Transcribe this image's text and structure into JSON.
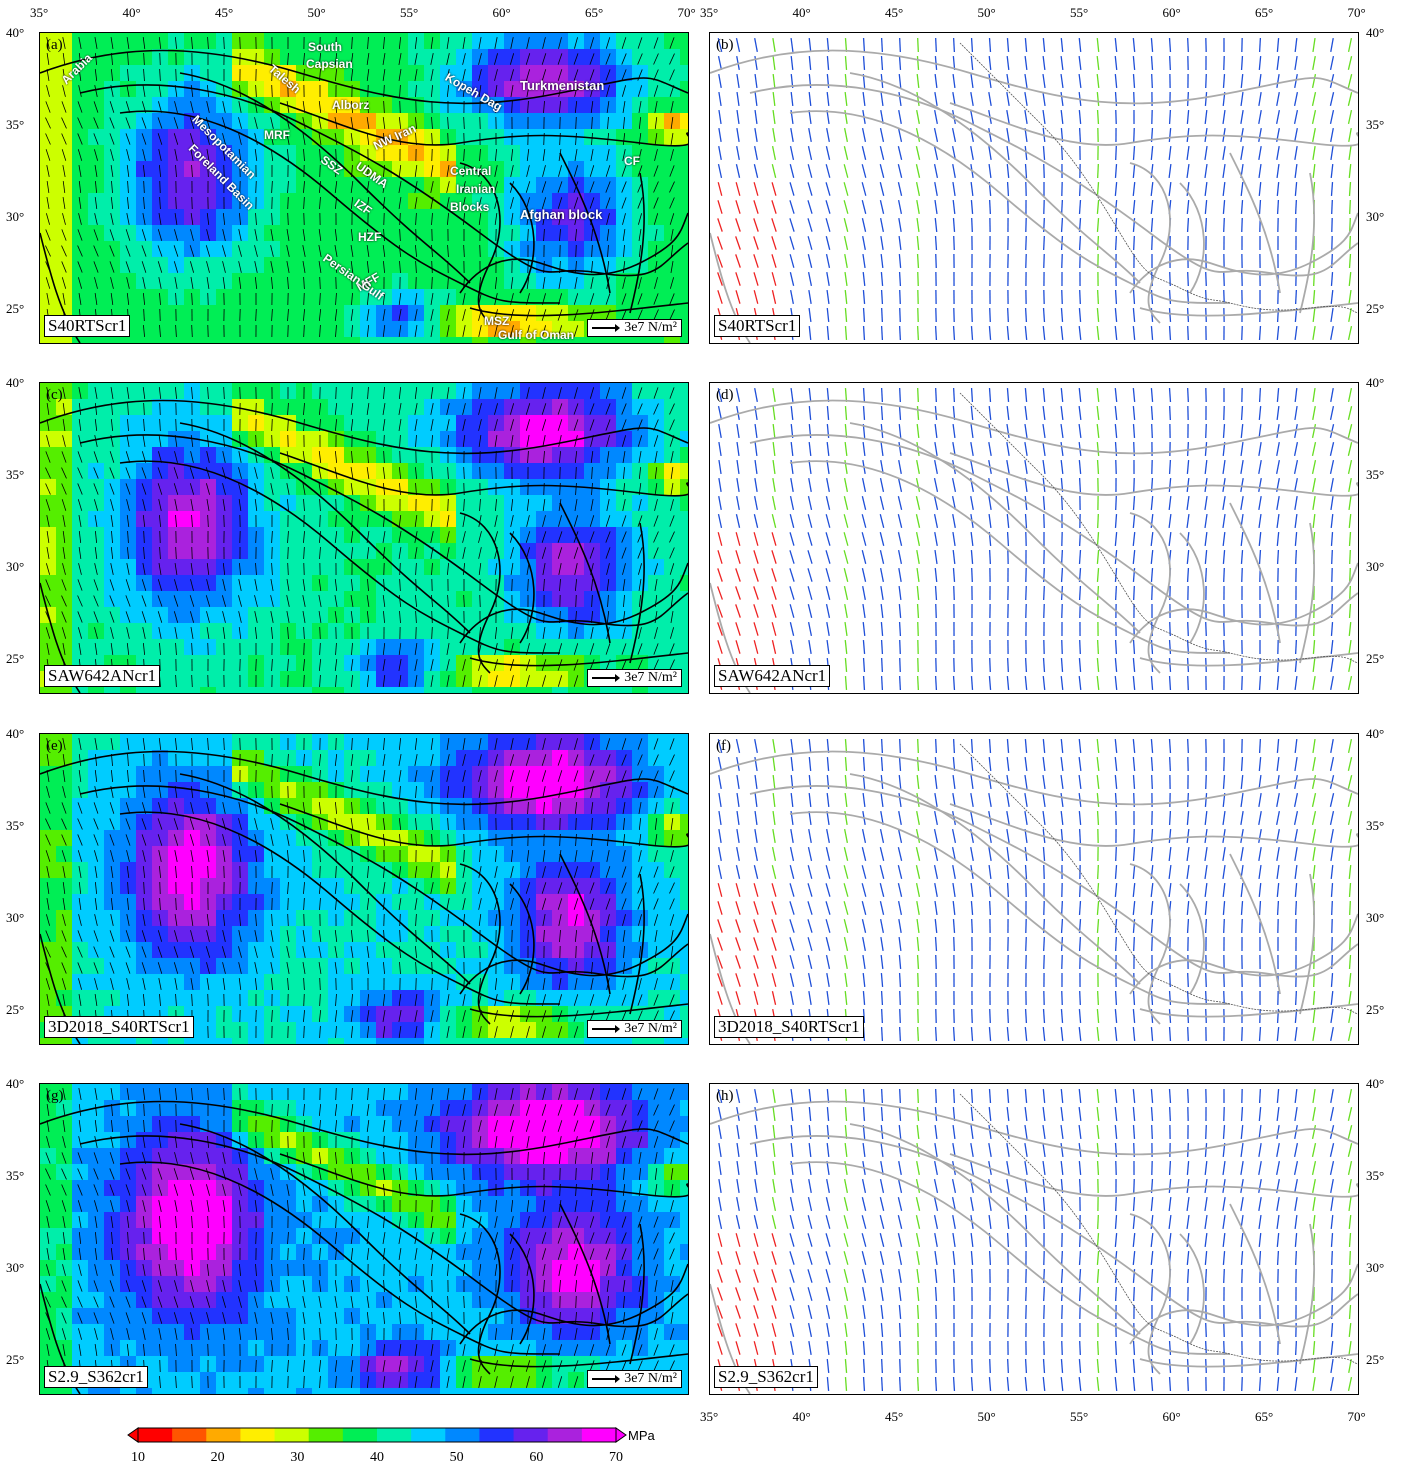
{
  "lon_ticks": [
    "35°",
    "40°",
    "45°",
    "50°",
    "55°",
    "60°",
    "65°",
    "70°"
  ],
  "lat_ticks": [
    "40°",
    "35°",
    "30°",
    "25°"
  ],
  "scale_text": "3e7 N/m²",
  "colorbar": {
    "ticks": [
      "10",
      "20",
      "30",
      "40",
      "50",
      "60",
      "70"
    ],
    "unit": "MPa",
    "colors": [
      "#ff0000",
      "#ff5500",
      "#ffaa00",
      "#ffee00",
      "#ccff00",
      "#55ee00",
      "#00ee55",
      "#00eeaa",
      "#00ccff",
      "#0088ff",
      "#2233ff",
      "#6622ee",
      "#aa22dd",
      "#ff00ff"
    ]
  },
  "panels": [
    {
      "letter": "(a)",
      "label": "S40RTScr1",
      "kind": "map"
    },
    {
      "letter": "(b)",
      "label": "S40RTScr1",
      "kind": "vectors"
    },
    {
      "letter": "(c)",
      "label": "SAW642ANcr1",
      "kind": "map"
    },
    {
      "letter": "(d)",
      "label": "SAW642ANcr1",
      "kind": "vectors"
    },
    {
      "letter": "(e)",
      "label": "3D2018_S40RTScr1",
      "kind": "map"
    },
    {
      "letter": "(f)",
      "label": "3D2018_S40RTScr1",
      "kind": "vectors"
    },
    {
      "letter": "(g)",
      "label": "S2.9_S362cr1",
      "kind": "map"
    },
    {
      "letter": "(h)",
      "label": "S2.9_S362cr1",
      "kind": "vectors"
    }
  ],
  "region_labels": {
    "arabia": "Arabia",
    "south_caspian": "South",
    "south_caspian2": "Capsian",
    "talesh": "Talesh",
    "alborz": "Alborz",
    "kopeh_dag": "Kopeh Dag",
    "turkmenistan": "Turkmenistan",
    "mesopotamian": "Mesopotamian",
    "foreland": "Foreland Basin",
    "mrf": "MRF",
    "ssz": "SSZ",
    "udma": "UDMA",
    "nw_iran": "NW Iran",
    "izf": "IZF",
    "hzf": "HZF",
    "mff": "MFF",
    "persian_gulf": "Persian Gulf",
    "central": "Central",
    "iranian": "Iranian",
    "blocks": "Blocks",
    "afghan": "Afghan block",
    "cf": "CF",
    "msz": "MSZ",
    "gulf_oman": "Gulf of Oman"
  },
  "vector_colors": {
    "blue": "#1f4fd8",
    "green": "#66dd22",
    "red": "#ee2222"
  }
}
